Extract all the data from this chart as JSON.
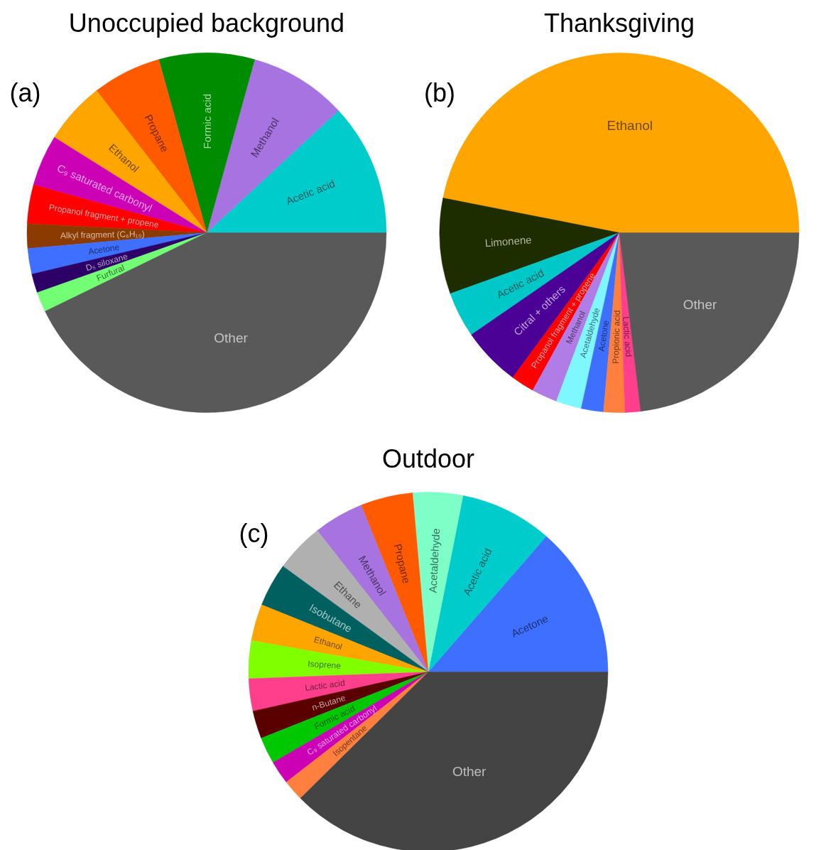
{
  "chart_data": [
    {
      "type": "pie",
      "title": "Unoccupied background",
      "annotations": [
        "(a)"
      ],
      "categories": [
        "Acetic acid",
        "Methanol",
        "Formic acid",
        "Propane",
        "Ethanol",
        "C₉ saturated carbonyl",
        "Propanol fragment + propene",
        "Alkyl fragment (C₆H₁₀)",
        "Acetone",
        "D₅ siloxane",
        "Furfural",
        "Other"
      ],
      "values": [
        11.9,
        8.8,
        8.6,
        6.2,
        5.6,
        4.6,
        3.5,
        2.2,
        2.3,
        1.7,
        1.8,
        42.8
      ],
      "colors": [
        "#00cccc",
        "#a673e0",
        "#008c00",
        "#ff5a00",
        "#ffa500",
        "#cc00b4",
        "#ff0000",
        "#8b3a00",
        "#3f6fff",
        "#2c0066",
        "#73ff73",
        "#595959"
      ]
    },
    {
      "type": "pie",
      "title": "Thanksgiving",
      "annotations": [
        "(b)"
      ],
      "categories": [
        "Ethanol",
        "Limonene",
        "Acetic acid",
        "Citral + others",
        "Propanol fragment + propene",
        "Methanol",
        "Acetaldehyde",
        "Acetone",
        "Propionic acid",
        "Lactic acid",
        "Other"
      ],
      "values": [
        46.9,
        8.6,
        4.1,
        5.3,
        2.1,
        2.3,
        2.3,
        2.0,
        1.9,
        1.4,
        23.1
      ],
      "colors": [
        "#ffa500",
        "#1e2d00",
        "#00c8c8",
        "#4b0096",
        "#ff0000",
        "#b07ce6",
        "#7ff7ff",
        "#3f6fff",
        "#ff7f3f",
        "#ff3f8c",
        "#595959"
      ]
    },
    {
      "type": "pie",
      "title": "Outdoor",
      "annotations": [
        "(c)"
      ],
      "categories": [
        "Acetone",
        "Acetic acid",
        "Acetaldehyde",
        "Propane",
        "Methanol",
        "Ethane",
        "Isobutane",
        "Ethanol",
        "Isoprene",
        "Lactic acid",
        "n-Butane",
        "Formic acid",
        "C₉ saturated carbonyl",
        "Isopentane",
        "Other"
      ],
      "values": [
        13.6,
        8.3,
        4.5,
        4.7,
        4.5,
        4.4,
        3.9,
        3.3,
        3.4,
        2.9,
        2.5,
        2.4,
        2.1,
        1.9,
        37.6
      ],
      "colors": [
        "#3f6fff",
        "#00cccc",
        "#7fffc8",
        "#ff5a00",
        "#a673e0",
        "#b0b0b0",
        "#006060",
        "#ffa500",
        "#80ff00",
        "#ff3f8c",
        "#5a0000",
        "#00c800",
        "#cc00b4",
        "#ff7f3f",
        "#444444"
      ]
    }
  ]
}
